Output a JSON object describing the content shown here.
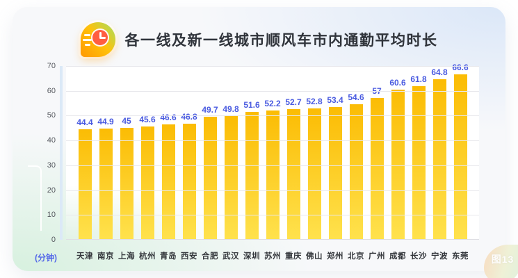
{
  "header": {
    "title": "各一线及新一线城市顺风车市内通勤平均时长",
    "icon": "clock-speed-icon"
  },
  "chart_data": {
    "type": "bar",
    "title": "各一线及新一线城市顺风车市内通勤平均时长",
    "categories": [
      "天津",
      "南京",
      "上海",
      "杭州",
      "青岛",
      "西安",
      "合肥",
      "武汉",
      "深圳",
      "苏州",
      "重庆",
      "佛山",
      "郑州",
      "北京",
      "广州",
      "成都",
      "长沙",
      "宁波",
      "东莞"
    ],
    "values": [
      44.4,
      44.9,
      45,
      45.6,
      46.6,
      46.8,
      49.7,
      49.8,
      51.6,
      52.2,
      52.7,
      52.8,
      53.4,
      54.6,
      57,
      60.6,
      61.8,
      64.8,
      66.6
    ],
    "xlabel": "",
    "ylabel": "(分钟)",
    "ylim": [
      0,
      70
    ],
    "yticks": [
      0,
      10,
      20,
      30,
      40,
      50,
      60,
      70
    ],
    "grid": true,
    "legend": "none",
    "colors": {
      "bar_gradient_top": "#FBBC04",
      "bar_gradient_bottom": "#FFE24D",
      "value_label": "#4A5BE0",
      "axis_tick": "#55585E",
      "category_label": "#33363B",
      "unit_label": "#5468E8"
    }
  },
  "badge": {
    "label": "图13"
  }
}
